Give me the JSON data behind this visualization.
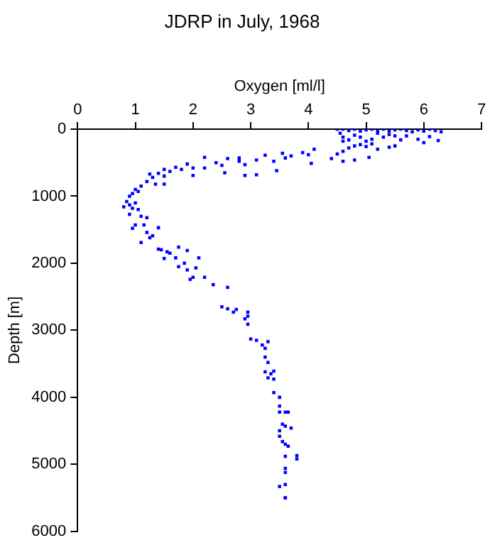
{
  "chart_data": {
    "type": "scatter",
    "title": "JDRP in July, 1968",
    "xlabel": "Oxygen [ml/l]",
    "ylabel": "Depth [m]",
    "xlim": [
      0,
      7
    ],
    "xticks": [
      0,
      1,
      2,
      3,
      4,
      5,
      6,
      7
    ],
    "ylim": [
      6000,
      0
    ],
    "yticks": [
      0,
      1000,
      2000,
      3000,
      4000,
      5000,
      6000
    ],
    "grid": false,
    "legend": false,
    "marker": "square",
    "color": "#0000ff",
    "x": [
      4.5,
      4.6,
      4.7,
      4.8,
      4.9,
      5.0,
      5.1,
      5.2,
      5.3,
      5.4,
      5.5,
      5.6,
      5.7,
      5.8,
      5.9,
      6.0,
      6.1,
      6.2,
      6.3,
      6.25,
      6.0,
      5.9,
      5.6,
      5.5,
      5.4,
      5.2,
      5.1,
      5.0,
      4.9,
      4.8,
      4.7,
      4.6,
      4.55,
      4.6,
      4.7,
      4.9,
      5.0,
      5.1,
      5.3,
      5.5,
      5.7,
      6.1,
      4.8,
      5.2,
      5.4,
      4.6,
      4.5,
      4.4,
      4.6,
      4.8,
      5.05,
      4.1,
      4.0,
      3.9,
      3.7,
      4.05,
      3.55,
      3.6,
      3.4,
      3.25,
      3.1,
      2.8,
      2.8,
      2.6,
      2.9,
      3.45,
      3.1,
      2.9,
      2.55,
      2.5,
      2.4,
      2.2,
      2.2,
      2.0,
      2.0,
      1.9,
      1.8,
      1.7,
      1.6,
      1.5,
      1.5,
      1.4,
      1.35,
      1.5,
      1.3,
      1.25,
      1.2,
      1.1,
      1.0,
      0.95,
      0.9,
      1.05,
      0.85,
      0.9,
      0.8,
      0.95,
      1.0,
      1.05,
      0.9,
      1.1,
      1.2,
      1.15,
      1.0,
      0.95,
      1.4,
      1.2,
      1.3,
      1.25,
      1.1,
      1.4,
      1.45,
      1.55,
      1.75,
      1.9,
      1.6,
      1.5,
      1.7,
      2.1,
      1.85,
      1.75,
      2.05,
      1.9,
      2.0,
      1.95,
      2.2,
      2.35,
      2.6,
      2.5,
      2.6,
      2.75,
      2.7,
      2.95,
      2.95,
      2.9,
      2.95,
      3.0,
      3.1,
      3.2,
      3.25,
      3.3,
      3.25,
      3.3,
      3.35,
      3.4,
      3.25,
      3.3,
      3.4,
      3.4,
      3.5,
      3.5,
      3.5,
      3.6,
      3.65,
      3.55,
      3.6,
      3.7,
      3.5,
      3.5,
      3.55,
      3.6,
      3.65,
      3.6,
      3.8,
      3.8,
      3.6,
      3.6,
      3.5,
      3.6,
      3.6,
      3.6
    ],
    "values": [
      0,
      0,
      20,
      0,
      30,
      10,
      0,
      20,
      0,
      30,
      10,
      0,
      20,
      40,
      10,
      30,
      0,
      20,
      40,
      170,
      200,
      150,
      160,
      250,
      270,
      300,
      220,
      180,
      120,
      250,
      160,
      120,
      60,
      180,
      280,
      230,
      260,
      150,
      120,
      100,
      100,
      110,
      90,
      60,
      80,
      330,
      370,
      440,
      480,
      460,
      420,
      300,
      380,
      350,
      400,
      510,
      360,
      430,
      480,
      390,
      460,
      430,
      480,
      440,
      530,
      620,
      680,
      690,
      650,
      540,
      500,
      420,
      580,
      580,
      690,
      520,
      600,
      570,
      630,
      600,
      700,
      660,
      820,
      820,
      720,
      670,
      780,
      850,
      900,
      960,
      1000,
      930,
      1080,
      1130,
      1160,
      1180,
      1100,
      1200,
      1270,
      1300,
      1320,
      1430,
      1430,
      1480,
      1470,
      1540,
      1590,
      1620,
      1690,
      1790,
      1800,
      1830,
      1760,
      1810,
      1850,
      1930,
      1920,
      1920,
      2000,
      2050,
      2070,
      2100,
      2210,
      2240,
      2210,
      2320,
      2360,
      2650,
      2680,
      2690,
      2730,
      2730,
      2790,
      2830,
      2910,
      3130,
      3150,
      3220,
      3270,
      3170,
      3400,
      3480,
      3650,
      3610,
      3620,
      3710,
      3730,
      3930,
      4000,
      4130,
      4220,
      4220,
      4220,
      4400,
      4430,
      4460,
      4500,
      4580,
      4660,
      4700,
      4730,
      4880,
      4870,
      4920,
      5060,
      5120,
      5330,
      5300,
      5500,
      5500
    ]
  }
}
